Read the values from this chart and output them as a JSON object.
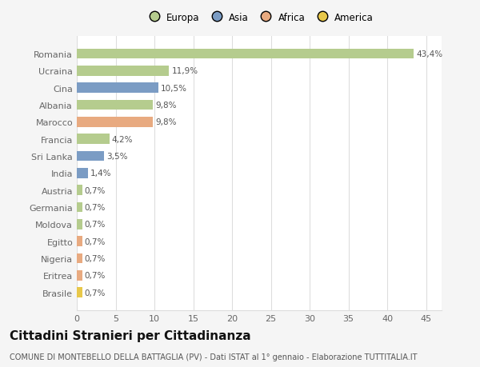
{
  "countries": [
    "Romania",
    "Ucraina",
    "Cina",
    "Albania",
    "Marocco",
    "Francia",
    "Sri Lanka",
    "India",
    "Austria",
    "Germania",
    "Moldova",
    "Egitto",
    "Nigeria",
    "Eritrea",
    "Brasile"
  ],
  "values": [
    43.4,
    11.9,
    10.5,
    9.8,
    9.8,
    4.2,
    3.5,
    1.4,
    0.7,
    0.7,
    0.7,
    0.7,
    0.7,
    0.7,
    0.7
  ],
  "labels": [
    "43,4%",
    "11,9%",
    "10,5%",
    "9,8%",
    "9,8%",
    "4,2%",
    "3,5%",
    "1,4%",
    "0,7%",
    "0,7%",
    "0,7%",
    "0,7%",
    "0,7%",
    "0,7%",
    "0,7%"
  ],
  "colors": [
    "#b5cc8e",
    "#b5cc8e",
    "#7b9cc4",
    "#b5cc8e",
    "#e8aa80",
    "#b5cc8e",
    "#7b9cc4",
    "#7b9cc4",
    "#b5cc8e",
    "#b5cc8e",
    "#b5cc8e",
    "#e8aa80",
    "#e8aa80",
    "#e8aa80",
    "#e8c84a"
  ],
  "legend_labels": [
    "Europa",
    "Asia",
    "Africa",
    "America"
  ],
  "legend_colors": [
    "#b5cc8e",
    "#7b9cc4",
    "#e8aa80",
    "#e8c84a"
  ],
  "title": "Cittadini Stranieri per Cittadinanza",
  "subtitle": "COMUNE DI MONTEBELLO DELLA BATTAGLIA (PV) - Dati ISTAT al 1° gennaio - Elaborazione TUTTITALIA.IT",
  "xlim": [
    0,
    47
  ],
  "xticks": [
    0,
    5,
    10,
    15,
    20,
    25,
    30,
    35,
    40,
    45
  ],
  "bg_color": "#f5f5f5",
  "plot_bg_color": "#ffffff",
  "grid_color": "#dddddd",
  "bar_height": 0.6,
  "title_fontsize": 11,
  "subtitle_fontsize": 7,
  "tick_fontsize": 8,
  "value_fontsize": 7.5
}
